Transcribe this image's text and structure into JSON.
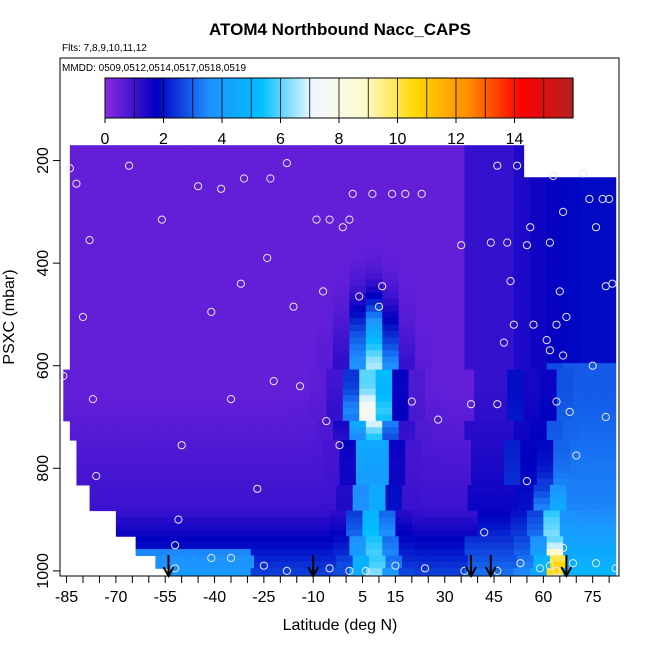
{
  "chart_data": {
    "type": "heatmap",
    "title": "ATOM4 Northbound Nacc_CAPS",
    "annotations": [
      "Flts: 7,8,9,10,11,12",
      "MMDD: 0509,0512,0514,0517,0518,0519"
    ],
    "xlabel": "Latitude (deg N)",
    "ylabel": "PSXC (mbar)",
    "xlim": [
      -87,
      83
    ],
    "ylim": [
      1010,
      0
    ],
    "x_ticks": [
      -85,
      -70,
      -55,
      -40,
      -25,
      -10,
      5,
      15,
      30,
      45,
      60,
      75
    ],
    "x_ticks_unlabeled": [
      -80,
      -75,
      -65,
      -60,
      -50,
      -45,
      -35,
      -30,
      -20,
      -15,
      -5,
      0,
      10,
      20,
      25,
      35,
      40,
      50,
      55,
      65,
      70,
      80
    ],
    "y_ticks": [
      200,
      400,
      600,
      800,
      1000
    ],
    "colorbar": {
      "range": [
        0,
        16
      ],
      "ticks": [
        0,
        2,
        4,
        6,
        8,
        10,
        12,
        14
      ],
      "colors": [
        "#8a2be2",
        "#0000c0",
        "#1e90ff",
        "#00bfff",
        "#f0f8ff",
        "#fffacd",
        "#ffd700",
        "#ff8c00",
        "#ff0000",
        "#b22222"
      ]
    },
    "arrows_lat": [
      -54,
      -10,
      38,
      44,
      67
    ],
    "grid": false,
    "legend": "none"
  }
}
